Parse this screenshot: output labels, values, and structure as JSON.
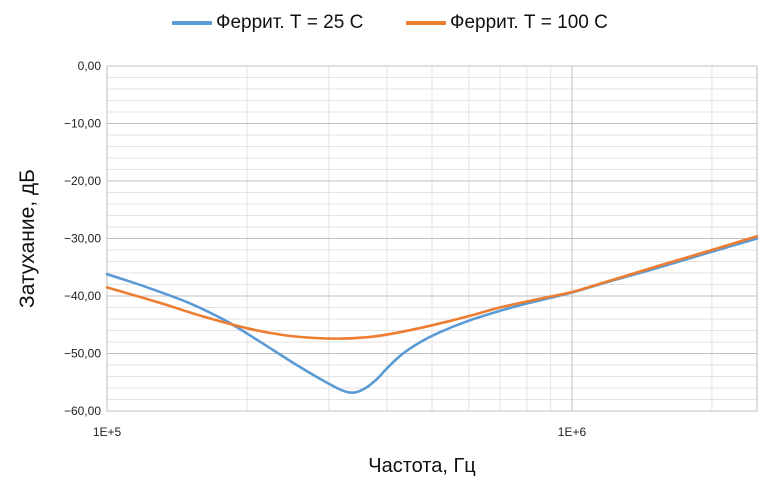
{
  "chart_data": {
    "type": "line",
    "title": "",
    "xlabel": "Частота, Гц",
    "ylabel": "Затухание, дБ",
    "x_scale": "log",
    "xlim": [
      100000,
      2500000
    ],
    "ylim": [
      -60,
      0
    ],
    "x_tick_labels": [
      {
        "x": 100000,
        "label": "1E+5"
      },
      {
        "x": 1000000,
        "label": "1E+6"
      }
    ],
    "y_tick_labels": [
      {
        "y": 0,
        "label": "0,00"
      },
      {
        "y": -10,
        "label": "−10,00"
      },
      {
        "y": -20,
        "label": "−20,00"
      },
      {
        "y": -30,
        "label": "−30,00"
      },
      {
        "y": -40,
        "label": "−40,00"
      },
      {
        "y": -50,
        "label": "−50,00"
      },
      {
        "y": -60,
        "label": "−60,00"
      }
    ],
    "grid": true,
    "legend_position": "top",
    "series": [
      {
        "name": "Феррит. Т = 25 С",
        "color": "#5b9bd5",
        "points": [
          [
            100000,
            -36.2
          ],
          [
            120000,
            -38.3
          ],
          [
            150000,
            -41.2
          ],
          [
            180000,
            -44.3
          ],
          [
            210000,
            -47.6
          ],
          [
            250000,
            -51.5
          ],
          [
            290000,
            -54.6
          ],
          [
            320000,
            -56.4
          ],
          [
            340000,
            -56.8
          ],
          [
            360000,
            -56.0
          ],
          [
            380000,
            -54.5
          ],
          [
            400000,
            -52.6
          ],
          [
            430000,
            -50.2
          ],
          [
            470000,
            -48.1
          ],
          [
            520000,
            -46.3
          ],
          [
            600000,
            -44.3
          ],
          [
            700000,
            -42.6
          ],
          [
            800000,
            -41.3
          ],
          [
            1000000,
            -39.4
          ],
          [
            1200000,
            -37.5
          ],
          [
            1500000,
            -35.3
          ],
          [
            2000000,
            -32.3
          ],
          [
            2500000,
            -30.0
          ]
        ]
      },
      {
        "name": "Феррит. Т = 100 С",
        "color": "#ed7d31",
        "points": [
          [
            100000,
            -38.5
          ],
          [
            130000,
            -41.2
          ],
          [
            160000,
            -43.5
          ],
          [
            200000,
            -45.6
          ],
          [
            240000,
            -46.8
          ],
          [
            280000,
            -47.3
          ],
          [
            320000,
            -47.4
          ],
          [
            370000,
            -47.1
          ],
          [
            420000,
            -46.4
          ],
          [
            500000,
            -45.1
          ],
          [
            600000,
            -43.5
          ],
          [
            700000,
            -42.0
          ],
          [
            850000,
            -40.5
          ],
          [
            1000000,
            -39.3
          ],
          [
            1200000,
            -37.4
          ],
          [
            1500000,
            -35.0
          ],
          [
            2000000,
            -32.0
          ],
          [
            2500000,
            -29.6
          ]
        ]
      }
    ]
  }
}
